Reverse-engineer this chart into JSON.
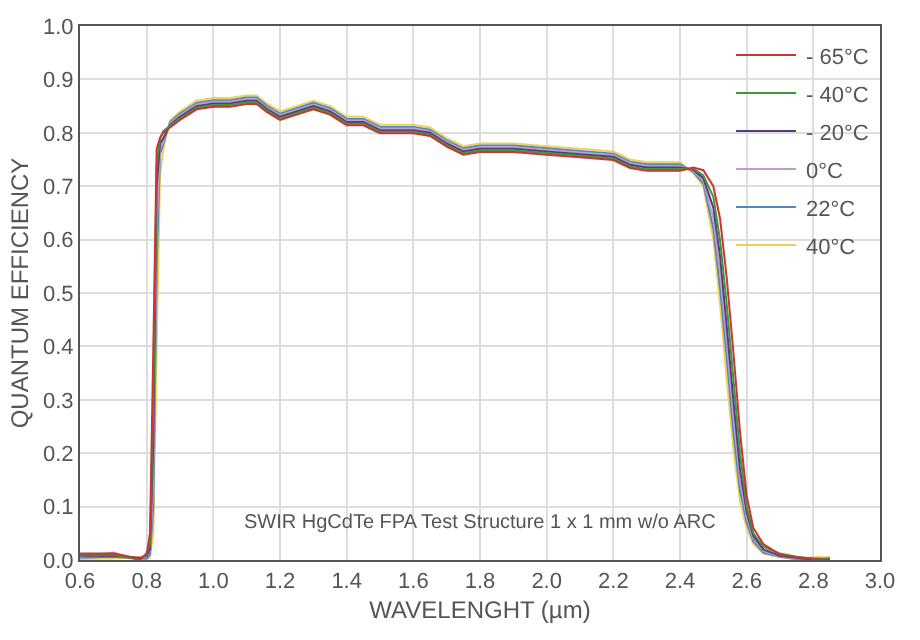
{
  "chart_data": {
    "type": "line",
    "xlabel": "WAVELENGHT (µm)",
    "ylabel": "QUANTUM EFFICIENCY",
    "annotations": [
      "SWIR HgCdTe FPA Test Structure 1 x 1 mm w/o ARC"
    ],
    "x": [
      0.6,
      0.7,
      0.78,
      0.8,
      0.81,
      0.82,
      0.83,
      0.84,
      0.85,
      0.87,
      0.9,
      0.95,
      1.0,
      1.05,
      1.1,
      1.13,
      1.16,
      1.2,
      1.25,
      1.3,
      1.35,
      1.4,
      1.45,
      1.5,
      1.6,
      1.65,
      1.7,
      1.75,
      1.8,
      1.9,
      2.0,
      2.1,
      2.2,
      2.25,
      2.3,
      2.4,
      2.44,
      2.47,
      2.5,
      2.52,
      2.54,
      2.56,
      2.58,
      2.6,
      2.62,
      2.65,
      2.7,
      2.75,
      2.8,
      2.85
    ],
    "series": [
      {
        "name": "- 65°C",
        "color": "#cc3333",
        "values": [
          0.012,
          0.012,
          0.002,
          0.01,
          0.05,
          0.4,
          0.77,
          0.79,
          0.8,
          0.81,
          0.824,
          0.844,
          0.849,
          0.849,
          0.854,
          0.854,
          0.839,
          0.824,
          0.834,
          0.844,
          0.834,
          0.814,
          0.814,
          0.799,
          0.799,
          0.794,
          0.774,
          0.759,
          0.764,
          0.764,
          0.759,
          0.754,
          0.749,
          0.734,
          0.729,
          0.729,
          0.735,
          0.73,
          0.7,
          0.64,
          0.53,
          0.39,
          0.24,
          0.12,
          0.06,
          0.03,
          0.01,
          0.005,
          0.002,
          0.0
        ]
      },
      {
        "name": "- 40°C",
        "color": "#3a9a3a",
        "values": [
          0.01,
          0.01,
          0.0,
          0.012,
          0.03,
          0.3,
          0.74,
          0.79,
          0.803,
          0.813,
          0.827,
          0.847,
          0.852,
          0.852,
          0.857,
          0.857,
          0.842,
          0.827,
          0.837,
          0.847,
          0.837,
          0.817,
          0.817,
          0.802,
          0.802,
          0.797,
          0.777,
          0.762,
          0.767,
          0.767,
          0.762,
          0.757,
          0.752,
          0.737,
          0.732,
          0.732,
          0.733,
          0.72,
          0.68,
          0.6,
          0.48,
          0.34,
          0.2,
          0.1,
          0.05,
          0.025,
          0.012,
          0.006,
          0.003,
          0.001
        ]
      },
      {
        "name": "- 20°C",
        "color": "#5a3a7a",
        "values": [
          0.008,
          0.008,
          0.004,
          0.008,
          0.02,
          0.22,
          0.7,
          0.78,
          0.79,
          0.815,
          0.83,
          0.85,
          0.855,
          0.855,
          0.86,
          0.86,
          0.845,
          0.83,
          0.84,
          0.85,
          0.84,
          0.82,
          0.82,
          0.805,
          0.805,
          0.8,
          0.78,
          0.765,
          0.77,
          0.77,
          0.765,
          0.76,
          0.755,
          0.74,
          0.735,
          0.735,
          0.731,
          0.715,
          0.66,
          0.57,
          0.44,
          0.3,
          0.17,
          0.09,
          0.045,
          0.02,
          0.008,
          0.004,
          0.001,
          0.002
        ]
      },
      {
        "name": "0°C",
        "color": "#c49ac8",
        "values": [
          0.006,
          0.014,
          0.001,
          0.014,
          0.016,
          0.15,
          0.62,
          0.77,
          0.785,
          0.818,
          0.833,
          0.853,
          0.858,
          0.858,
          0.863,
          0.863,
          0.848,
          0.833,
          0.843,
          0.853,
          0.843,
          0.823,
          0.823,
          0.808,
          0.808,
          0.803,
          0.783,
          0.768,
          0.773,
          0.773,
          0.768,
          0.763,
          0.758,
          0.743,
          0.738,
          0.738,
          0.729,
          0.71,
          0.64,
          0.54,
          0.41,
          0.27,
          0.15,
          0.08,
          0.04,
          0.017,
          0.007,
          0.003,
          0.004,
          0.003
        ]
      },
      {
        "name": "22°C",
        "color": "#4a8ac4",
        "values": [
          0.004,
          0.006,
          0.003,
          0.003,
          0.01,
          0.1,
          0.55,
          0.76,
          0.78,
          0.82,
          0.836,
          0.856,
          0.861,
          0.861,
          0.866,
          0.866,
          0.851,
          0.836,
          0.846,
          0.856,
          0.846,
          0.826,
          0.826,
          0.811,
          0.811,
          0.806,
          0.786,
          0.771,
          0.776,
          0.776,
          0.771,
          0.766,
          0.761,
          0.746,
          0.741,
          0.741,
          0.727,
          0.705,
          0.62,
          0.51,
          0.38,
          0.24,
          0.13,
          0.07,
          0.035,
          0.014,
          0.006,
          0.002,
          0.0,
          0.004
        ]
      },
      {
        "name": "40°C",
        "color": "#f0d050",
        "values": [
          0.002,
          0.003,
          0.005,
          0.0,
          0.006,
          0.05,
          0.4,
          0.72,
          0.77,
          0.823,
          0.84,
          0.86,
          0.865,
          0.865,
          0.87,
          0.87,
          0.855,
          0.84,
          0.85,
          0.86,
          0.85,
          0.83,
          0.83,
          0.815,
          0.815,
          0.81,
          0.79,
          0.775,
          0.78,
          0.78,
          0.775,
          0.77,
          0.765,
          0.75,
          0.745,
          0.745,
          0.724,
          0.7,
          0.6,
          0.48,
          0.34,
          0.21,
          0.11,
          0.06,
          0.03,
          0.012,
          0.005,
          0.001,
          0.005,
          0.005
        ]
      }
    ],
    "xlim": [
      0.6,
      3.0
    ],
    "xticks": [
      0.6,
      0.8,
      {
        "value": 1.0,
        "label": "1.0"
      },
      1.2,
      1.4,
      1.6,
      1.8,
      {
        "value": 2.0,
        "label": "2.0"
      },
      2.2,
      2.4,
      2.6,
      2.8,
      {
        "value": 3.0,
        "label": "3.0"
      }
    ],
    "ylim": [
      0,
      1
    ],
    "yticks": [
      {
        "value": 0,
        "label": "0.0"
      },
      0.1,
      0.2,
      0.3,
      0.4,
      0.5,
      0.6,
      0.7,
      0.8,
      0.9,
      {
        "value": 1,
        "label": "1.0"
      }
    ],
    "grid": true,
    "legend": "top right",
    "marker": "none",
    "line_style": "solid"
  }
}
